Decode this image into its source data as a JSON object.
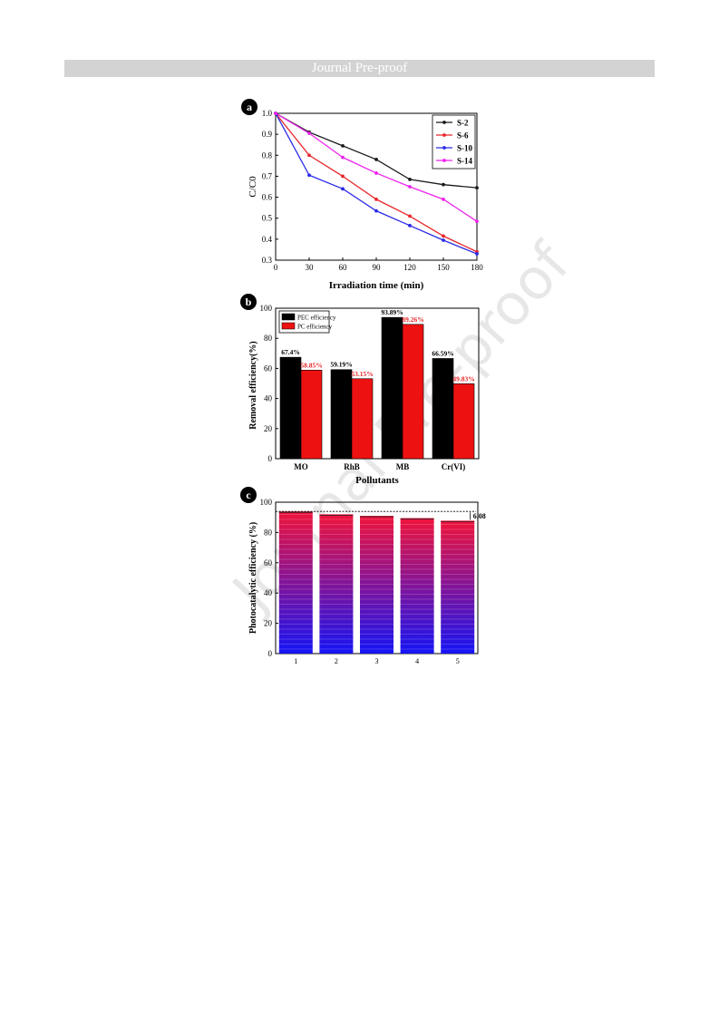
{
  "header": {
    "banner_text": "Journal Pre-proof"
  },
  "watermark": {
    "text": "Journal Pre-proof"
  },
  "chart_data": [
    {
      "panel_label": "a",
      "type": "line",
      "xlabel": "Irradiation time (min)",
      "ylabel": "C/C0",
      "x": [
        0,
        30,
        60,
        90,
        120,
        150,
        180
      ],
      "xlim": [
        0,
        180
      ],
      "ylim": [
        0.3,
        1.0
      ],
      "xticks": [
        0,
        30,
        60,
        90,
        120,
        150,
        180
      ],
      "yticks": [
        0.3,
        0.4,
        0.5,
        0.6,
        0.7,
        0.8,
        0.9,
        1.0
      ],
      "legend_position": "top-right",
      "series": [
        {
          "name": "S-2",
          "color": "#1a1a1a",
          "values": [
            1.0,
            0.91,
            0.845,
            0.78,
            0.685,
            0.66,
            0.645
          ]
        },
        {
          "name": "S-6",
          "color": "#e8262a",
          "values": [
            1.0,
            0.8,
            0.7,
            0.59,
            0.51,
            0.415,
            0.34
          ]
        },
        {
          "name": "S-10",
          "color": "#2a2ae8",
          "values": [
            1.0,
            0.705,
            0.64,
            0.535,
            0.465,
            0.395,
            0.33
          ]
        },
        {
          "name": "S-14",
          "color": "#ee22ee",
          "values": [
            1.0,
            0.905,
            0.79,
            0.715,
            0.65,
            0.59,
            0.485
          ]
        }
      ]
    },
    {
      "panel_label": "b",
      "type": "bar",
      "xlabel": "Pollutants",
      "ylabel": "Removal efficiency(%)",
      "categories": [
        "MO",
        "RhB",
        "MB",
        "Cr(VI)"
      ],
      "ylim": [
        0,
        100
      ],
      "yticks": [
        0,
        20,
        40,
        60,
        80,
        100
      ],
      "legend_position": "top-left",
      "series": [
        {
          "name": "PEC efficiency",
          "color": "#000000",
          "values": [
            67.4,
            59.19,
            93.89,
            66.59
          ],
          "labels": [
            "67.4%",
            "59.19%",
            "93.89%",
            "66.59%"
          ]
        },
        {
          "name": "PC  efficiency",
          "color": "#ee1111",
          "values": [
            58.85,
            53.15,
            89.26,
            49.83
          ],
          "labels": [
            "58.85%",
            "53.15%",
            "89.26%",
            "49.83%"
          ]
        }
      ]
    },
    {
      "panel_label": "c",
      "type": "bar",
      "ylabel": "Photocatalytic efficiency (%)",
      "categories": [
        "1",
        "2",
        "3",
        "4",
        "5"
      ],
      "values": [
        93.89,
        92.0,
        91.0,
        89.5,
        87.8
      ],
      "ylim": [
        0,
        100
      ],
      "yticks": [
        0,
        20,
        40,
        60,
        80,
        100
      ],
      "annotation": "6.08",
      "gradient": {
        "top": "#f0143c",
        "bottom": "#1414f5"
      }
    }
  ]
}
